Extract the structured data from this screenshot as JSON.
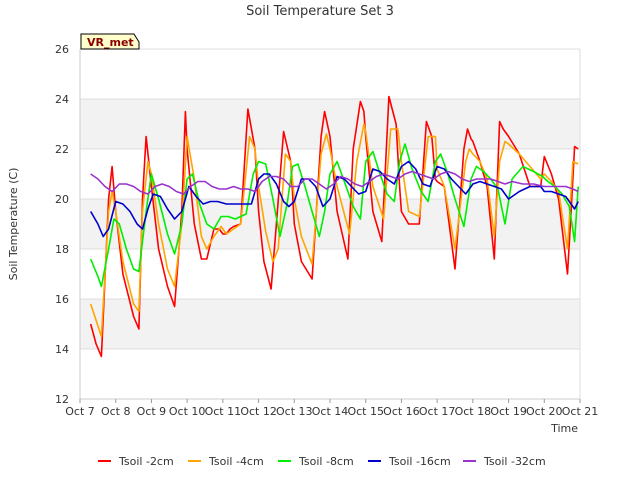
{
  "chart_data": {
    "type": "line",
    "title": "Soil Temperature Set 3",
    "xlabel": "Time",
    "ylabel": "Soil Temperature (C)",
    "badge": "VR_met",
    "xlim": [
      7.0,
      21.0
    ],
    "ylim": [
      12,
      26
    ],
    "x_ticks": [
      7,
      8,
      9,
      10,
      11,
      12,
      13,
      14,
      15,
      16,
      17,
      18,
      19,
      20,
      21
    ],
    "x_tick_labels": [
      "Oct 7",
      "Oct 8",
      "Oct 9",
      "Oct 10",
      "Oct 11",
      "Oct 12",
      "Oct 13",
      "Oct 14",
      "Oct 15",
      "Oct 16",
      "Oct 17",
      "Oct 18",
      "Oct 19",
      "Oct 20",
      "Oct 21"
    ],
    "y_ticks": [
      12,
      14,
      16,
      18,
      20,
      22,
      24,
      26
    ],
    "y_tick_labels": [
      "12",
      "14",
      "16",
      "18",
      "20",
      "22",
      "24",
      "26"
    ],
    "grid": true,
    "legend_position": "bottom",
    "series": [
      {
        "name": "Tsoil -2cm",
        "color": "#ff0000",
        "x": [
          7.3,
          7.45,
          7.6,
          7.8,
          7.9,
          8.0,
          8.2,
          8.5,
          8.65,
          8.75,
          8.85,
          9.0,
          9.2,
          9.45,
          9.65,
          9.85,
          9.95,
          10.0,
          10.2,
          10.4,
          10.55,
          10.75,
          10.9,
          11.0,
          11.1,
          11.2,
          11.3,
          11.5,
          11.7,
          11.9,
          12.0,
          12.15,
          12.35,
          12.5,
          12.7,
          12.9,
          13.0,
          13.2,
          13.5,
          13.75,
          13.85,
          14.0,
          14.2,
          14.5,
          14.65,
          14.85,
          14.95,
          15.0,
          15.2,
          15.45,
          15.65,
          15.85,
          15.95,
          16.0,
          16.2,
          16.5,
          16.7,
          16.85,
          16.95,
          17.0,
          17.2,
          17.5,
          17.75,
          17.85,
          17.95,
          18.0,
          18.2,
          18.4,
          18.6,
          18.75,
          18.85,
          19.0,
          19.3,
          19.6,
          19.9,
          20.0,
          20.2,
          20.4,
          20.65,
          20.75,
          20.85,
          20.95
        ],
        "y": [
          15.0,
          14.2,
          13.7,
          20.0,
          21.3,
          19.5,
          17.0,
          15.3,
          14.8,
          20.0,
          22.5,
          20.5,
          18.0,
          16.5,
          15.7,
          19.5,
          23.5,
          22.0,
          19.0,
          17.6,
          17.6,
          18.8,
          18.8,
          18.6,
          18.6,
          18.8,
          18.9,
          19.0,
          23.6,
          22.0,
          19.5,
          17.5,
          16.4,
          19.0,
          22.7,
          21.5,
          19.0,
          17.5,
          16.8,
          22.5,
          23.5,
          22.5,
          19.5,
          17.6,
          22.0,
          23.9,
          23.5,
          22.5,
          19.5,
          18.3,
          24.1,
          23.0,
          20.5,
          19.5,
          19.0,
          19.0,
          23.1,
          22.5,
          20.8,
          20.7,
          20.5,
          17.2,
          22.0,
          22.8,
          22.4,
          22.3,
          21.5,
          20.5,
          17.6,
          23.1,
          22.8,
          22.5,
          21.8,
          20.5,
          20.5,
          21.7,
          21.0,
          20.0,
          17.0,
          19.5,
          22.1,
          22.0
        ]
      },
      {
        "name": "Tsoil -4cm",
        "color": "#ffa500",
        "x": [
          7.3,
          7.6,
          7.8,
          7.9,
          8.0,
          8.2,
          8.5,
          8.65,
          8.75,
          8.9,
          9.0,
          9.2,
          9.45,
          9.65,
          9.85,
          10.0,
          10.2,
          10.4,
          10.55,
          10.75,
          10.95,
          11.1,
          11.3,
          11.5,
          11.75,
          11.9,
          12.0,
          12.2,
          12.4,
          12.55,
          12.75,
          12.9,
          13.0,
          13.2,
          13.5,
          13.75,
          13.9,
          14.0,
          14.2,
          14.55,
          14.75,
          14.95,
          15.0,
          15.2,
          15.5,
          15.7,
          15.9,
          16.0,
          16.2,
          16.5,
          16.75,
          16.95,
          17.0,
          17.2,
          17.5,
          17.8,
          17.9,
          18.0,
          18.2,
          18.4,
          18.6,
          18.75,
          18.9,
          19.0,
          19.3,
          19.6,
          19.9,
          20.0,
          20.2,
          20.4,
          20.65,
          20.8,
          20.95
        ],
        "y": [
          15.8,
          14.5,
          19.5,
          20.3,
          19.5,
          17.5,
          15.8,
          15.5,
          19.5,
          21.5,
          21.0,
          19.0,
          17.2,
          16.5,
          19.0,
          22.5,
          20.8,
          18.5,
          18.0,
          18.5,
          18.9,
          18.6,
          18.8,
          19.0,
          22.5,
          22.0,
          20.5,
          18.7,
          17.5,
          18.0,
          21.8,
          21.5,
          20.0,
          18.5,
          17.4,
          21.8,
          22.6,
          22.0,
          20.5,
          18.6,
          21.5,
          23.0,
          22.7,
          20.5,
          19.2,
          22.8,
          22.8,
          21.5,
          19.5,
          19.3,
          22.5,
          22.5,
          21.2,
          20.5,
          18.0,
          21.5,
          22.0,
          21.8,
          21.5,
          20.8,
          18.5,
          21.5,
          22.3,
          22.2,
          21.8,
          21.3,
          20.8,
          21.0,
          20.7,
          20.3,
          18.0,
          21.5,
          21.4
        ]
      },
      {
        "name": "Tsoil -8cm",
        "color": "#00ee00",
        "x": [
          7.3,
          7.5,
          7.6,
          7.8,
          7.95,
          8.1,
          8.3,
          8.5,
          8.65,
          8.85,
          9.0,
          9.2,
          9.45,
          9.65,
          9.85,
          10.0,
          10.15,
          10.35,
          10.55,
          10.75,
          10.95,
          11.15,
          11.35,
          11.5,
          11.65,
          11.85,
          12.0,
          12.2,
          12.4,
          12.6,
          12.8,
          12.95,
          13.1,
          13.3,
          13.5,
          13.7,
          13.85,
          14.0,
          14.2,
          14.45,
          14.65,
          14.85,
          15.0,
          15.2,
          15.4,
          15.6,
          15.8,
          15.95,
          16.1,
          16.3,
          16.55,
          16.75,
          16.95,
          17.1,
          17.3,
          17.5,
          17.75,
          17.95,
          18.1,
          18.3,
          18.5,
          18.7,
          18.9,
          19.1,
          19.4,
          19.7,
          19.95,
          20.1,
          20.3,
          20.5,
          20.7,
          20.85,
          20.95
        ],
        "y": [
          17.6,
          16.9,
          16.5,
          18.0,
          19.2,
          19.0,
          18.0,
          17.2,
          17.1,
          19.5,
          21.0,
          20.0,
          18.6,
          17.8,
          19.0,
          20.8,
          21.0,
          19.8,
          19.0,
          18.8,
          19.3,
          19.3,
          19.2,
          19.3,
          19.4,
          21.0,
          21.5,
          21.4,
          20.0,
          18.5,
          19.8,
          21.3,
          21.4,
          20.5,
          19.5,
          18.5,
          19.5,
          21.0,
          21.5,
          20.5,
          19.7,
          19.2,
          21.5,
          21.9,
          21.0,
          20.2,
          19.9,
          21.5,
          22.2,
          21.2,
          20.3,
          19.9,
          21.5,
          21.8,
          21.0,
          20.0,
          18.9,
          20.8,
          21.3,
          21.1,
          20.8,
          20.4,
          19.0,
          20.8,
          21.3,
          21.1,
          20.9,
          20.7,
          20.5,
          20.2,
          19.7,
          18.3,
          20.5
        ]
      },
      {
        "name": "Tsoil -16cm",
        "color": "#0000cc",
        "x": [
          7.3,
          7.5,
          7.65,
          7.8,
          8.0,
          8.2,
          8.4,
          8.6,
          8.75,
          8.9,
          9.05,
          9.25,
          9.45,
          9.65,
          9.85,
          10.05,
          10.25,
          10.45,
          10.65,
          10.85,
          11.1,
          11.3,
          11.55,
          11.8,
          12.0,
          12.15,
          12.3,
          12.5,
          12.7,
          12.85,
          13.0,
          13.2,
          13.4,
          13.6,
          13.8,
          14.0,
          14.2,
          14.4,
          14.6,
          14.8,
          15.0,
          15.2,
          15.4,
          15.6,
          15.8,
          16.0,
          16.2,
          16.4,
          16.6,
          16.8,
          17.0,
          17.2,
          17.4,
          17.6,
          17.8,
          18.0,
          18.2,
          18.4,
          18.6,
          18.8,
          19.0,
          19.3,
          19.6,
          19.9,
          20.0,
          20.2,
          20.4,
          20.6,
          20.75,
          20.85,
          20.95
        ],
        "y": [
          19.5,
          19.0,
          18.5,
          18.8,
          19.9,
          19.8,
          19.5,
          19.0,
          18.8,
          19.6,
          20.2,
          20.1,
          19.6,
          19.2,
          19.5,
          20.5,
          20.1,
          19.8,
          19.9,
          19.9,
          19.8,
          19.8,
          19.8,
          19.8,
          20.8,
          21.0,
          21.0,
          20.6,
          19.9,
          19.7,
          19.9,
          20.8,
          20.8,
          20.5,
          19.7,
          20.0,
          20.9,
          20.8,
          20.5,
          20.2,
          20.3,
          21.2,
          21.1,
          20.8,
          20.6,
          21.3,
          21.5,
          21.2,
          20.6,
          20.5,
          21.3,
          21.2,
          20.8,
          20.5,
          20.2,
          20.6,
          20.7,
          20.6,
          20.5,
          20.4,
          20.0,
          20.3,
          20.5,
          20.5,
          20.3,
          20.3,
          20.2,
          20.1,
          19.8,
          19.6,
          19.9
        ]
      },
      {
        "name": "Tsoil -32cm",
        "color": "#9933cc",
        "x": [
          7.3,
          7.5,
          7.7,
          7.9,
          8.1,
          8.3,
          8.5,
          8.7,
          8.9,
          9.1,
          9.3,
          9.5,
          9.7,
          9.9,
          10.1,
          10.3,
          10.5,
          10.7,
          10.9,
          11.1,
          11.3,
          11.5,
          11.7,
          11.9,
          12.1,
          12.3,
          12.5,
          12.7,
          12.9,
          13.1,
          13.3,
          13.5,
          13.7,
          13.9,
          14.1,
          14.3,
          14.5,
          14.7,
          14.9,
          15.1,
          15.3,
          15.5,
          15.7,
          15.9,
          16.1,
          16.3,
          16.5,
          16.7,
          16.9,
          17.1,
          17.3,
          17.5,
          17.7,
          17.9,
          18.1,
          18.3,
          18.5,
          18.7,
          18.9,
          19.1,
          19.4,
          19.7,
          20.0,
          20.3,
          20.6,
          20.8,
          20.95
        ],
        "y": [
          21.0,
          20.8,
          20.5,
          20.3,
          20.6,
          20.6,
          20.5,
          20.3,
          20.2,
          20.5,
          20.6,
          20.5,
          20.3,
          20.2,
          20.5,
          20.7,
          20.7,
          20.5,
          20.4,
          20.4,
          20.5,
          20.4,
          20.4,
          20.3,
          20.7,
          20.9,
          20.9,
          20.8,
          20.5,
          20.5,
          20.8,
          20.8,
          20.6,
          20.4,
          20.6,
          20.9,
          20.8,
          20.6,
          20.5,
          20.7,
          20.9,
          21.0,
          20.9,
          20.8,
          21.0,
          21.1,
          21.0,
          20.9,
          20.8,
          21.0,
          21.1,
          21.0,
          20.8,
          20.7,
          20.8,
          20.8,
          20.8,
          20.7,
          20.6,
          20.7,
          20.6,
          20.6,
          20.5,
          20.5,
          20.5,
          20.4,
          20.3
        ]
      }
    ]
  }
}
